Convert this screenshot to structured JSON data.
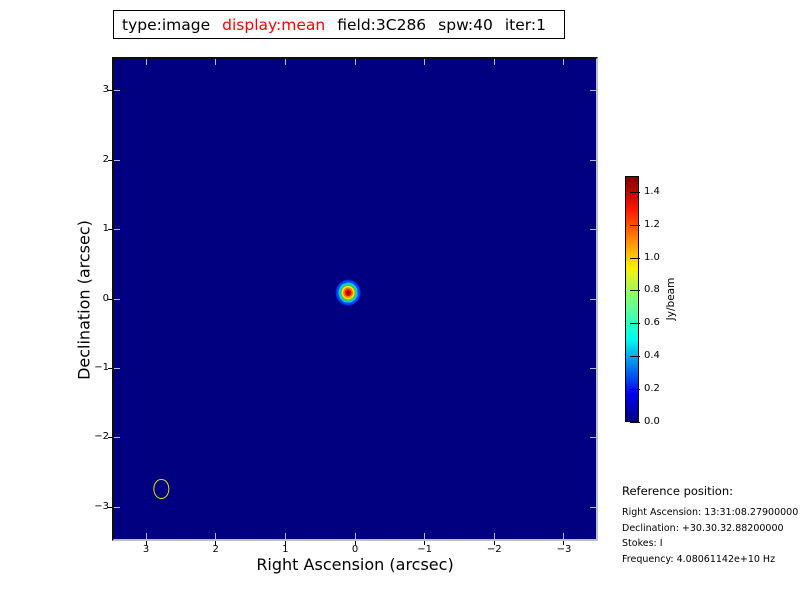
{
  "title": {
    "segments": [
      {
        "text": "type:image",
        "color": "#000000"
      },
      {
        "text": "display:mean",
        "color": "#ff0000"
      },
      {
        "text": "field:3C286",
        "color": "#000000"
      },
      {
        "text": "spw:40",
        "color": "#000000"
      },
      {
        "text": "iter:1",
        "color": "#000000"
      }
    ]
  },
  "chart_data": {
    "type": "heatmap",
    "xlabel": "Right Ascension (arcsec)",
    "ylabel": "Declination (arcsec)",
    "xlim": [
      3.46,
      -3.46
    ],
    "ylim": [
      -3.46,
      3.46
    ],
    "x_ticks": [
      3,
      2,
      1,
      0,
      -1,
      -2,
      -3
    ],
    "y_ticks": [
      3,
      2,
      1,
      0,
      -1,
      -2,
      -3
    ],
    "background_value_jy_per_beam": 0.0,
    "background_color": "#000080",
    "colormap": "jet",
    "source": {
      "ra_arcsec": 0.1,
      "dec_arcsec": 0.09,
      "peak_jy_per_beam_approx": 1.47,
      "display_diameter_arcsec": 0.37
    },
    "beam_ellipse": {
      "ra_arcsec": 2.78,
      "dec_arcsec": -2.74,
      "width_arcsec": 0.22,
      "height_arcsec": 0.29,
      "color": "#e6e600"
    },
    "colorbar": {
      "label": "Jy/beam",
      "ticks": [
        0.0,
        0.2,
        0.4,
        0.6,
        0.8,
        1.0,
        1.2,
        1.4
      ],
      "vmin": 0.0,
      "vmax": 1.5
    }
  },
  "reference": {
    "heading": "Reference position:",
    "lines": [
      "Right Ascension: 13:31:08.27900000",
      "Declination: +30.30.32.88200000",
      "Stokes: I",
      "Frequency: 4.08061142e+10 Hz"
    ]
  }
}
